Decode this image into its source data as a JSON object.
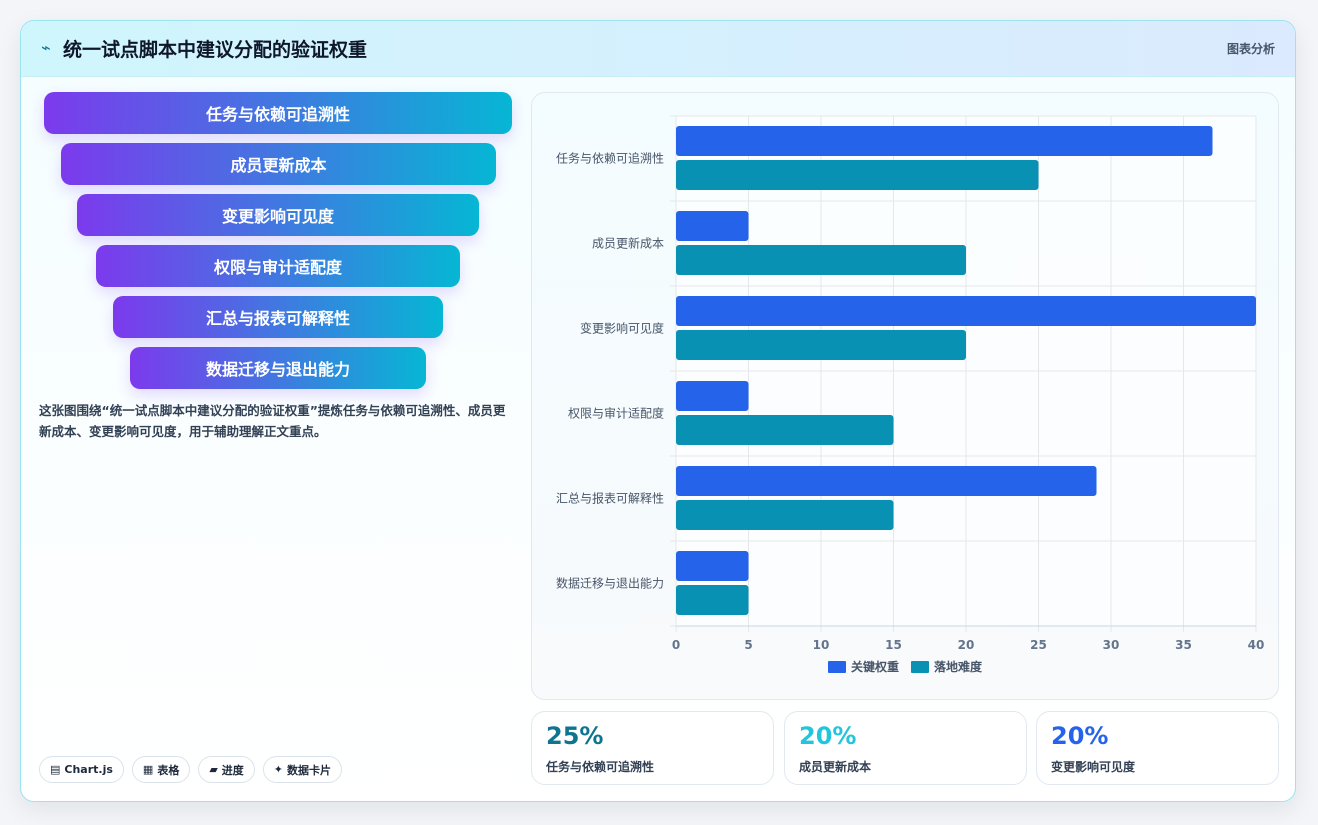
{
  "header": {
    "icon": "pulse-icon",
    "title": "统一试点脚本中建议分配的验证权重",
    "tag": "图表分析"
  },
  "funnel": [
    "任务与依赖可追溯性",
    "成员更新成本",
    "变更影响可见度",
    "权限与审计适配度",
    "汇总与报表可解释性",
    "数据迁移与退出能力"
  ],
  "description": "这张图围绕“统一试点脚本中建议分配的验证权重”提炼任务与依赖可追溯性、成员更新成本、变更影响可见度，用于辅助理解正文重点。",
  "chips": [
    {
      "icon": "chart-icon",
      "glyph": "▤",
      "label": "Chart.js"
    },
    {
      "icon": "table-icon",
      "glyph": "▦",
      "label": "表格"
    },
    {
      "icon": "progress-icon",
      "glyph": "▰",
      "label": "进度"
    },
    {
      "icon": "spark-icon",
      "glyph": "✦",
      "label": "数据卡片"
    }
  ],
  "kpis": [
    {
      "value": "25%",
      "label": "任务与依赖可追溯性",
      "color": "#0e7490"
    },
    {
      "value": "20%",
      "label": "成员更新成本",
      "color": "#22c5dd"
    },
    {
      "value": "20%",
      "label": "变更影响可见度",
      "color": "#2563eb"
    }
  ],
  "chart_data": {
    "type": "bar",
    "orientation": "horizontal",
    "title": "",
    "xlabel": "",
    "ylabel": "",
    "categories": [
      "任务与依赖可追溯性",
      "成员更新成本",
      "变更影响可见度",
      "权限与审计适配度",
      "汇总与报表可解释性",
      "数据迁移与退出能力"
    ],
    "series": [
      {
        "name": "关键权重",
        "color": "#2563eb",
        "values": [
          37,
          5,
          40,
          5,
          29,
          5
        ]
      },
      {
        "name": "落地难度",
        "color": "#0891b2",
        "values": [
          25,
          20,
          20,
          15,
          15,
          5
        ]
      }
    ],
    "xlim": [
      0,
      40
    ],
    "xticks": [
      0,
      5,
      10,
      15,
      20,
      25,
      30,
      35,
      40
    ],
    "grid": true,
    "legend": "bottom"
  }
}
